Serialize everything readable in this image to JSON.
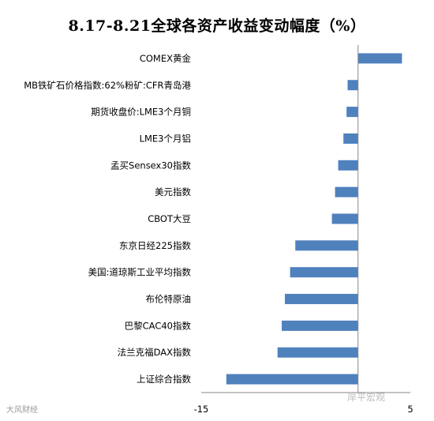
{
  "title": "8.17-8.21全球各资产收益变动幅度（%）",
  "watermark_left": "大风财经",
  "watermark_right": "岸平宏观",
  "chart_data": {
    "type": "bar",
    "orientation": "horizontal",
    "title": "8.17-8.21全球各资产收益变动幅度（%）",
    "categories": [
      "COMEX黄金",
      "MB铁矿石价格指数:62%粉矿:CFR青岛港",
      "期货收盘价:LME3个月铜",
      "LME3个月铝",
      "孟买Sensex30指数",
      "美元指数",
      "CBOT大豆",
      "东京日经225指数",
      "美国:道琼斯工业平均指数",
      "布伦特原油",
      "巴黎CAC40指数",
      "法兰克福DAX指数",
      "上证综合指数"
    ],
    "values": [
      4.2,
      -1.0,
      -1.1,
      -1.4,
      -1.9,
      -2.2,
      -2.5,
      -6.0,
      -6.5,
      -7.0,
      -7.3,
      -7.7,
      -12.6
    ],
    "xlim": [
      -15,
      5
    ],
    "xticks": [
      -15,
      5
    ],
    "bar_color": "#4f81bd",
    "grid": false
  }
}
